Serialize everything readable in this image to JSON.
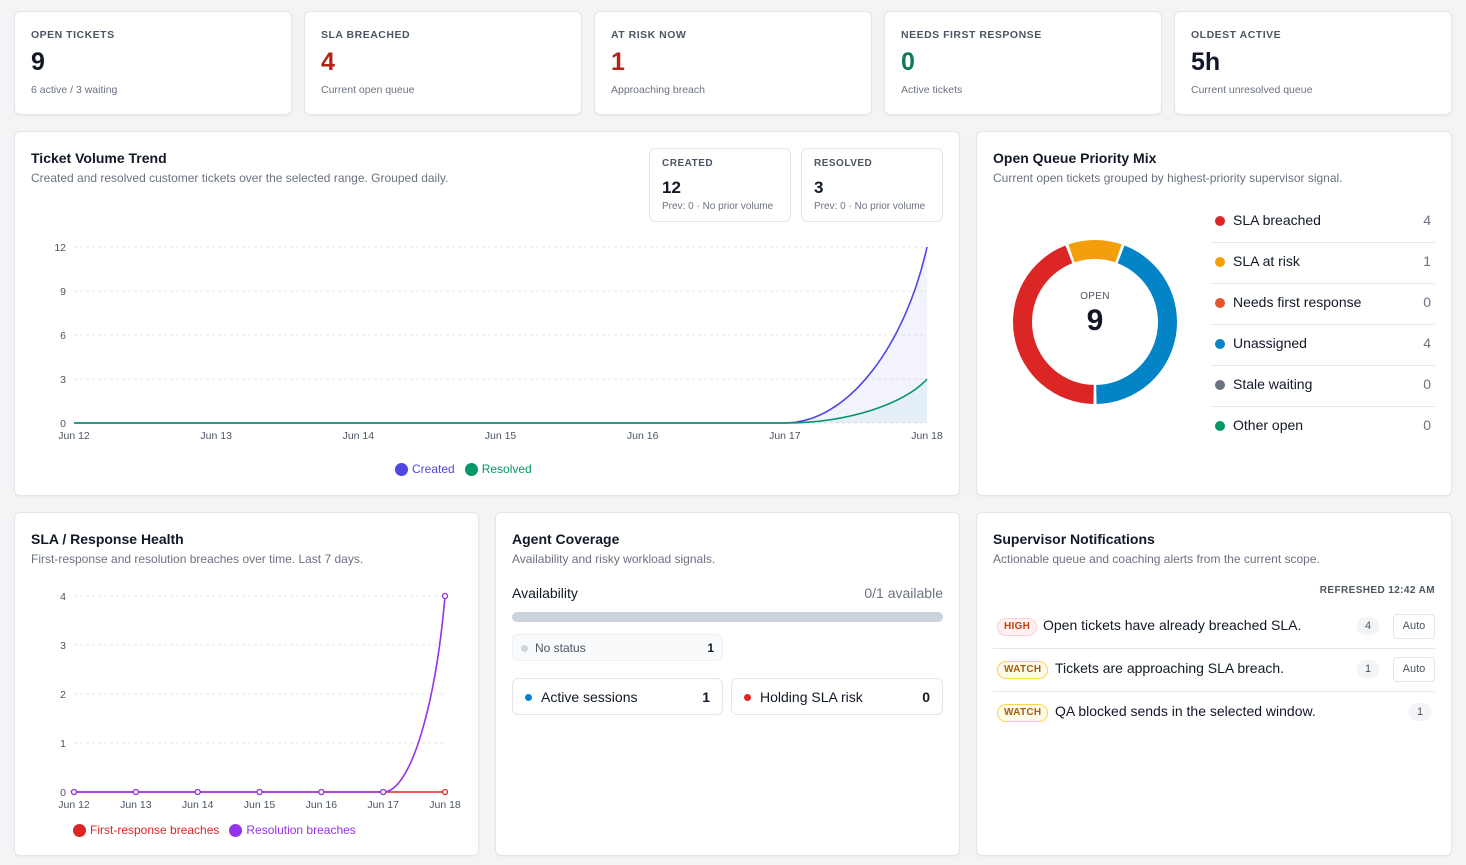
{
  "kpis": [
    {
      "label": "OPEN TICKETS",
      "value": "9",
      "sub": "6 active / 3 waiting",
      "color": "#111827"
    },
    {
      "label": "SLA BREACHED",
      "value": "4",
      "sub": "Current open queue",
      "color": "#b42318"
    },
    {
      "label": "AT RISK NOW",
      "value": "1",
      "sub": "Approaching breach",
      "color": "#b42318"
    },
    {
      "label": "NEEDS FIRST RESPONSE",
      "value": "0",
      "sub": "Active tickets",
      "color": "#0f7b5a"
    },
    {
      "label": "OLDEST ACTIVE",
      "value": "5h",
      "sub": "Current unresolved queue",
      "color": "#111827"
    }
  ],
  "volume": {
    "title": "Ticket Volume Trend",
    "subtitle": "Created and resolved customer tickets over the selected range. Grouped daily.",
    "created": {
      "label": "CREATED",
      "value": "12",
      "sub": "Prev: 0 · No prior volume"
    },
    "resolved": {
      "label": "RESOLVED",
      "value": "3",
      "sub": "Prev: 0 · No prior volume"
    },
    "legend_created": "Created",
    "legend_resolved": "Resolved"
  },
  "priority": {
    "title": "Open Queue Priority Mix",
    "subtitle": "Current open tickets grouped by highest-priority supervisor signal.",
    "center_label": "OPEN",
    "center_value": "9",
    "items": [
      {
        "label": "SLA breached",
        "value": "4",
        "color": "#dc2626"
      },
      {
        "label": "SLA at risk",
        "value": "1",
        "color": "#f59e0b"
      },
      {
        "label": "Needs first response",
        "value": "0",
        "color": "#e4572e"
      },
      {
        "label": "Unassigned",
        "value": "4",
        "color": "#0284c7"
      },
      {
        "label": "Stale waiting",
        "value": "0",
        "color": "#6b7280"
      },
      {
        "label": "Other open",
        "value": "0",
        "color": "#059669"
      }
    ]
  },
  "sla": {
    "title": "SLA / Response Health",
    "subtitle": "First-response and resolution breaches over time. Last 7 days.",
    "legend_first": "First-response breaches",
    "legend_resolution": "Resolution breaches"
  },
  "agents": {
    "title": "Agent Coverage",
    "subtitle": "Availability and risky workload signals.",
    "availability_label": "Availability",
    "availability_value": "0/1 available",
    "availability_fraction": 0,
    "no_status_label": "No status",
    "no_status_value": "1",
    "active_label": "Active sessions",
    "active_value": "1",
    "holding_label": "Holding SLA risk",
    "holding_value": "0"
  },
  "notifications": {
    "title": "Supervisor Notifications",
    "subtitle": "Actionable queue and coaching alerts from the current scope.",
    "refreshed": "REFRESHED 12:42 AM",
    "items": [
      {
        "level": "HIGH",
        "text": "Open tickets have already breached SLA.",
        "count": "4",
        "action": "Auto"
      },
      {
        "level": "WATCH",
        "text": "Tickets are approaching SLA breach.",
        "count": "1",
        "action": "Auto"
      },
      {
        "level": "WATCH",
        "text": "QA blocked sends in the selected window.",
        "count": "1"
      }
    ]
  },
  "chart_data": [
    {
      "type": "area",
      "categories": [
        "Jun 12",
        "Jun 13",
        "Jun 14",
        "Jun 15",
        "Jun 16",
        "Jun 17",
        "Jun 18"
      ],
      "series": [
        {
          "name": "Created",
          "values": [
            0,
            0,
            0,
            0,
            0,
            0,
            12
          ],
          "color": "#4f46e5"
        },
        {
          "name": "Resolved",
          "values": [
            0,
            0,
            0,
            0,
            0,
            0,
            3
          ],
          "color": "#059669"
        }
      ],
      "yticks": [
        "0",
        "3",
        "6",
        "9",
        "12"
      ],
      "ylim": [
        0,
        12
      ],
      "grid": true,
      "legend": "bottom"
    },
    {
      "type": "line",
      "categories": [
        "Jun 12",
        "Jun 13",
        "Jun 14",
        "Jun 15",
        "Jun 16",
        "Jun 17",
        "Jun 18"
      ],
      "series": [
        {
          "name": "First-response breaches",
          "values": [
            0,
            0,
            0,
            0,
            0,
            0,
            0
          ],
          "color": "#dc2626"
        },
        {
          "name": "Resolution breaches",
          "values": [
            0,
            0,
            0,
            0,
            0,
            0,
            4
          ],
          "color": "#9333ea"
        }
      ],
      "yticks": [
        "0",
        "1",
        "2",
        "3",
        "4"
      ],
      "ylim": [
        0,
        4
      ],
      "grid": true,
      "legend": "bottom"
    },
    {
      "type": "pie",
      "categories": [
        "SLA breached",
        "SLA at risk",
        "Needs first response",
        "Unassigned",
        "Stale waiting",
        "Other open"
      ],
      "values": [
        4,
        1,
        0,
        4,
        0,
        0
      ],
      "total": 9
    }
  ]
}
